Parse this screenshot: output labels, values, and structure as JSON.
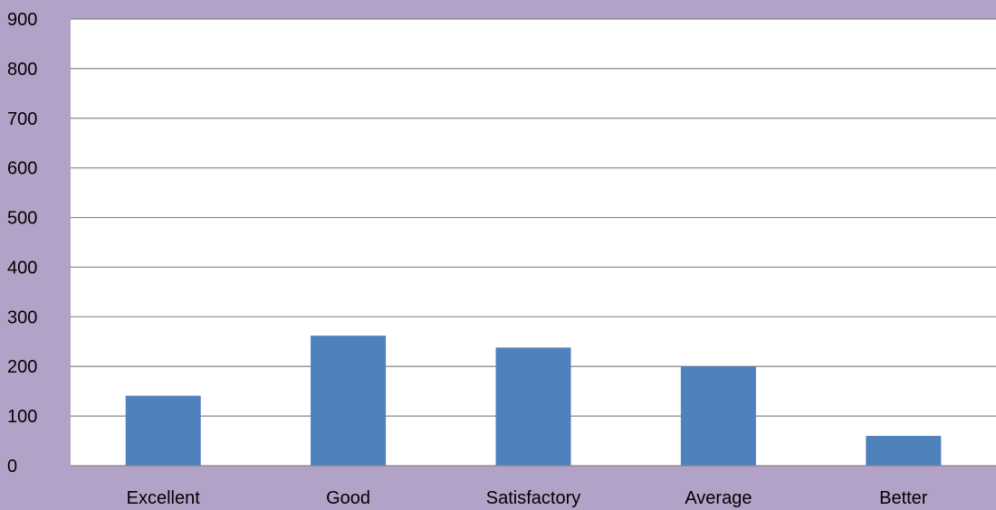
{
  "chart_data": {
    "type": "bar",
    "categories": [
      "Excellent",
      "Good",
      "Satisfactory",
      "Average",
      "Better"
    ],
    "values": [
      141,
      262,
      238,
      200,
      60
    ],
    "ylim": [
      0,
      900
    ],
    "yticks": [
      "0",
      "100",
      "200",
      "300",
      "400",
      "500",
      "600",
      "700",
      "800",
      "900"
    ],
    "grid": true,
    "legend": "none",
    "colors": {
      "background": "#b3a2c7",
      "plot_area": "#ffffff",
      "bar": "#4f81bd",
      "gridline": "#868686",
      "text": "#000000"
    }
  }
}
